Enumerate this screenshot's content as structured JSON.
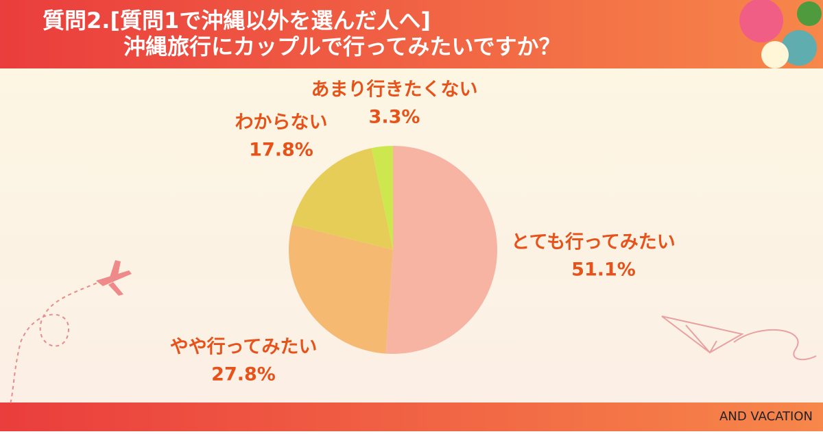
{
  "chart_data": {
    "type": "pie",
    "title": "質問2.[質問1で沖縄以外を選んだ人へ]",
    "subtitle": "沖縄旅行にカップルで行ってみたいですか？",
    "categories": [
      "とても行ってみたい",
      "やや行ってみたい",
      "わからない",
      "あまり行きたくない"
    ],
    "values": [
      51.1,
      27.8,
      17.8,
      3.3
    ],
    "value_labels": [
      "51.1%",
      "27.8%",
      "17.8%",
      "3.3%"
    ],
    "colors": [
      "#f7b4a2",
      "#f5b972",
      "#e6cd58",
      "#cde84f"
    ],
    "footer": "AND VACATION"
  }
}
